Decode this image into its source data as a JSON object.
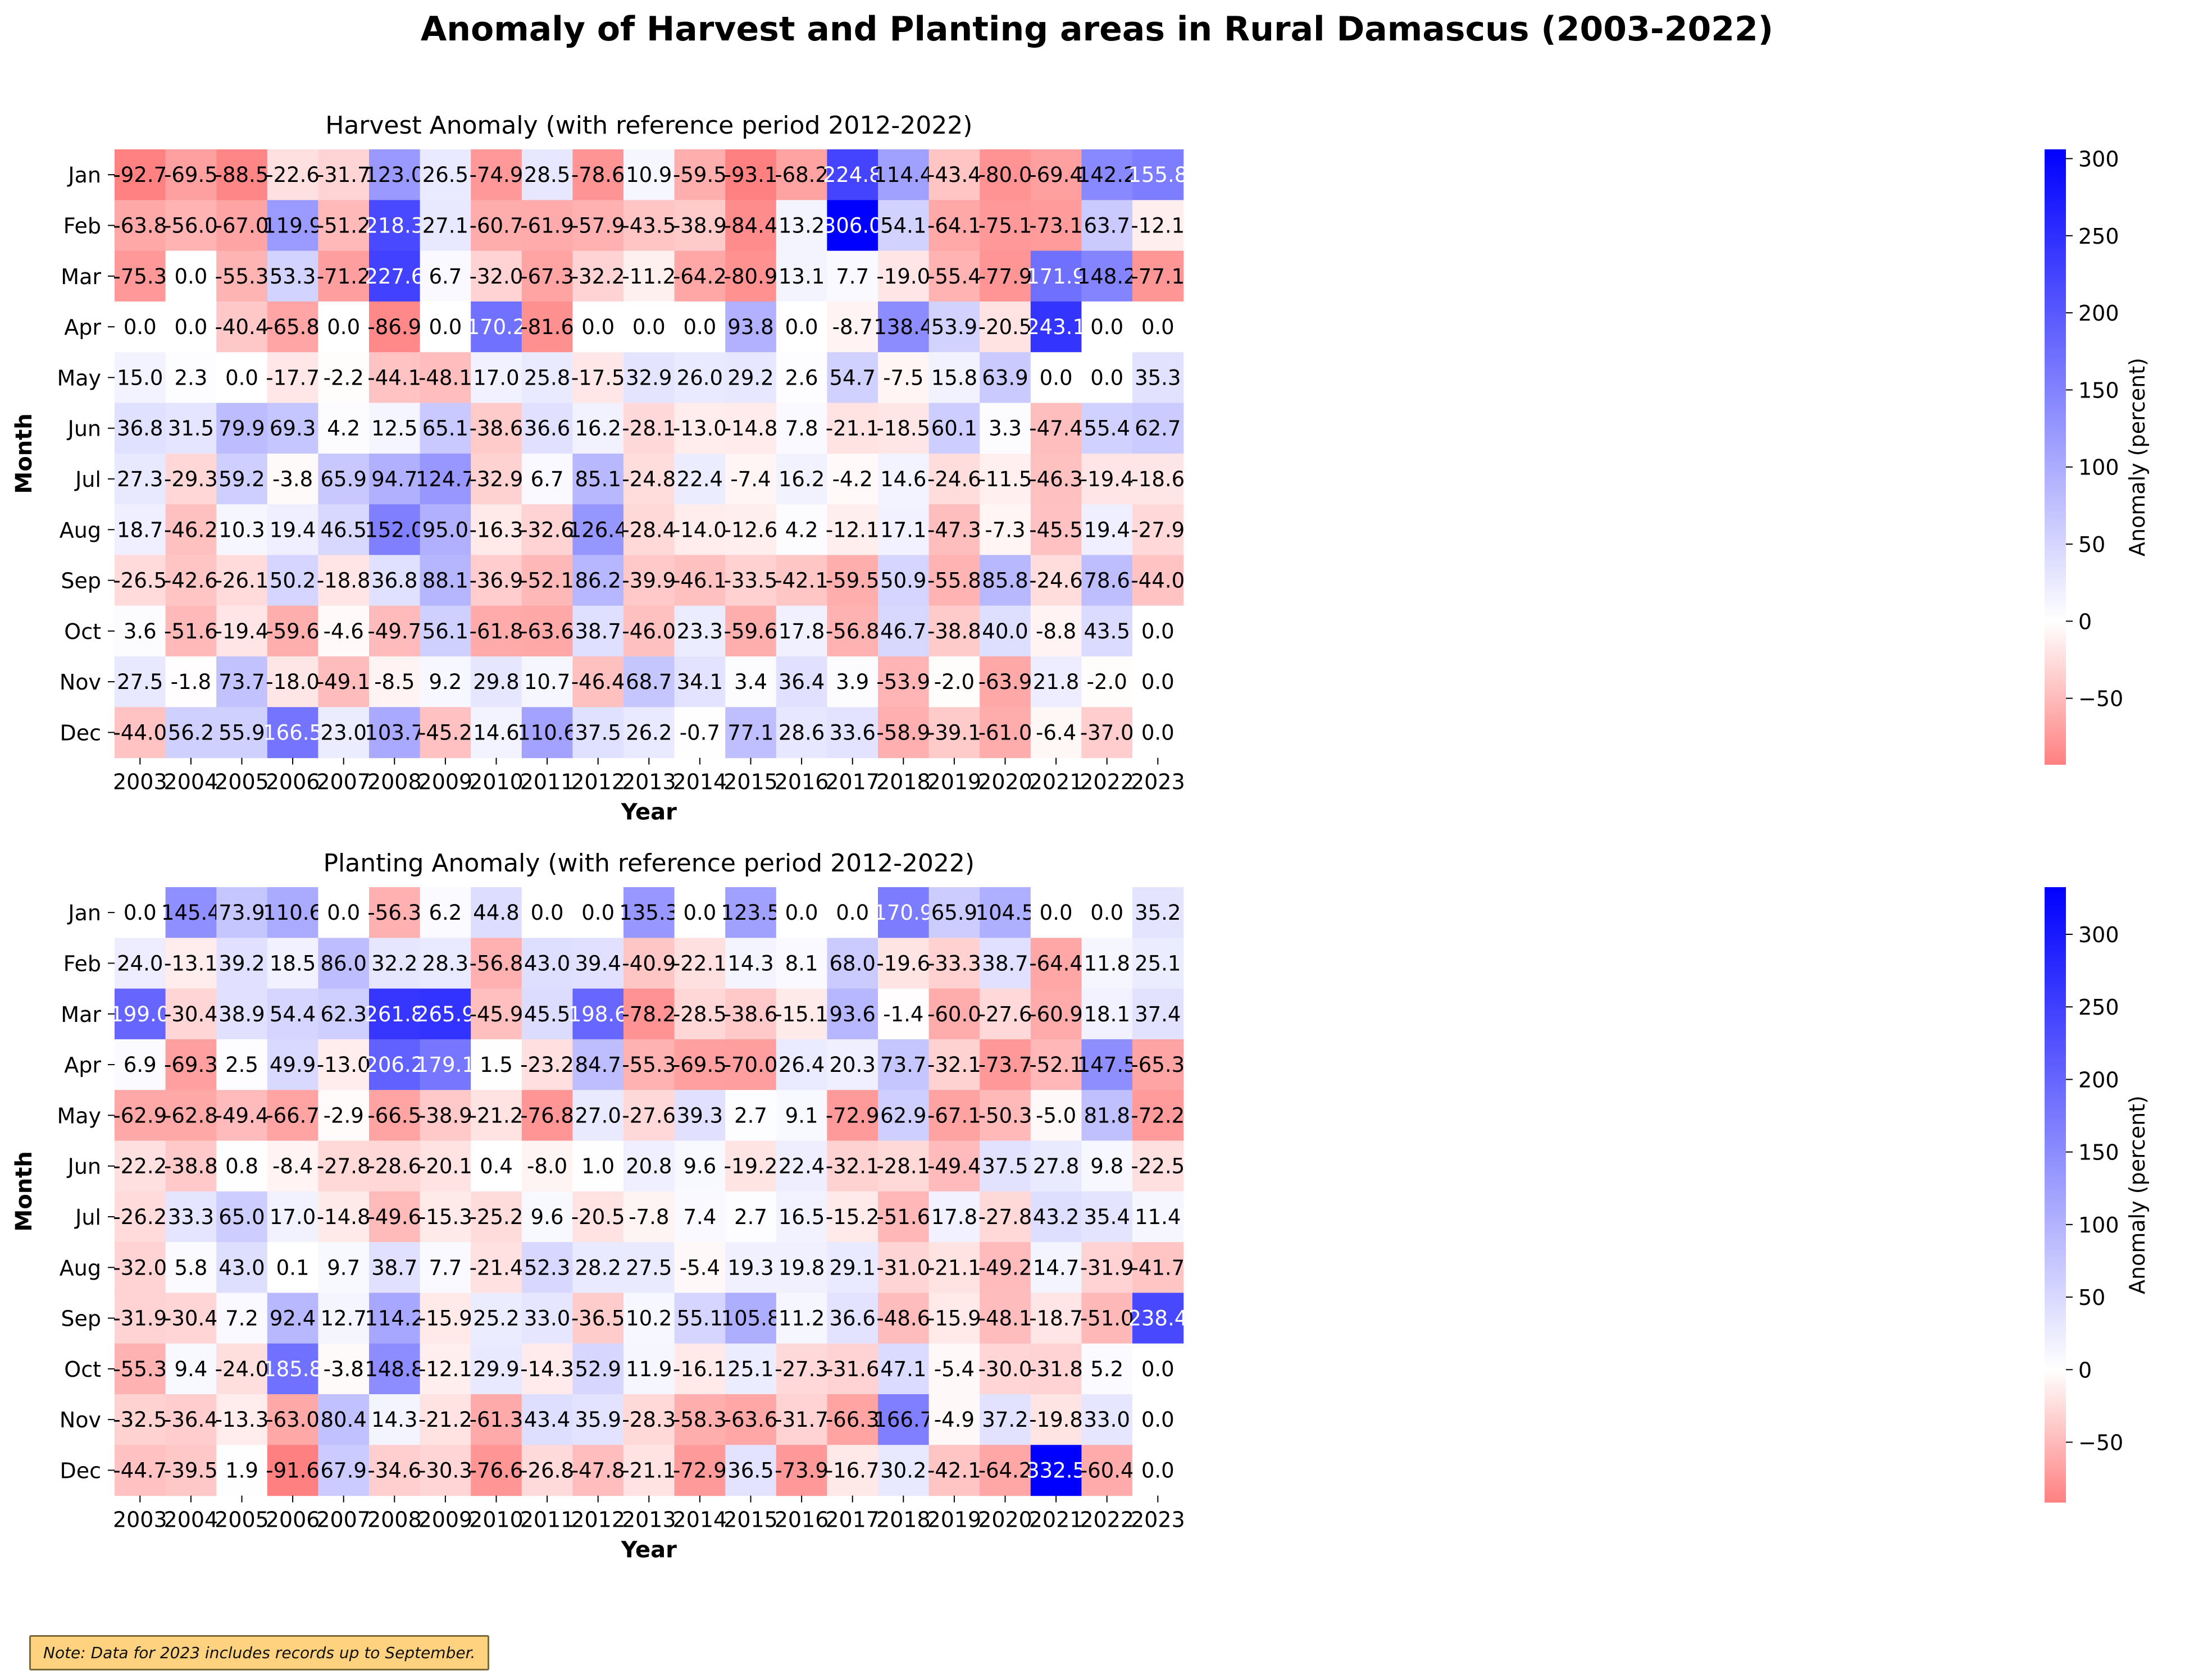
{
  "title": "Anomaly of Harvest and Planting areas in Rural Damascus (2003-2022)",
  "note": "Note: Data for 2023 includes records up to September.",
  "colors": {
    "negative": "#ff8080",
    "zero": "#ffffff",
    "positive": "#0000ff",
    "text_dark": "#000000",
    "text_light": "#ffffff"
  },
  "chart_data": [
    {
      "type": "heatmap",
      "title": "Harvest Anomaly (with reference period 2012-2022)",
      "xlabel": "Year",
      "ylabel": "Month",
      "colorbar_label": "Anomaly (percent)",
      "colorbar_ticks": [
        -50,
        0,
        50,
        100,
        150,
        200,
        250,
        300
      ],
      "vmin": -93.1,
      "vmax": 306.0,
      "x": [
        "2003",
        "2004",
        "2005",
        "2006",
        "2007",
        "2008",
        "2009",
        "2010",
        "2011",
        "2012",
        "2013",
        "2014",
        "2015",
        "2016",
        "2017",
        "2018",
        "2019",
        "2020",
        "2021",
        "2022",
        "2023"
      ],
      "y": [
        "Jan",
        "Feb",
        "Mar",
        "Apr",
        "May",
        "Jun",
        "Jul",
        "Aug",
        "Sep",
        "Oct",
        "Nov",
        "Dec"
      ],
      "values": [
        [
          -92.7,
          -69.5,
          -88.5,
          -22.6,
          -31.7,
          123.0,
          26.5,
          -74.9,
          28.5,
          -78.6,
          10.9,
          -59.5,
          -93.1,
          -68.2,
          224.8,
          114.4,
          -43.4,
          -80.0,
          -69.4,
          142.2,
          155.8
        ],
        [
          -63.8,
          -56.0,
          -67.0,
          119.9,
          -51.2,
          218.3,
          27.1,
          -60.7,
          -61.9,
          -57.9,
          -43.5,
          -38.9,
          -84.4,
          13.2,
          306.0,
          54.1,
          -64.1,
          -75.1,
          -73.1,
          63.7,
          -12.1
        ],
        [
          -75.3,
          0.0,
          -55.3,
          53.3,
          -71.2,
          227.6,
          6.7,
          -32.0,
          -67.3,
          -32.2,
          -11.2,
          -64.2,
          -80.9,
          13.1,
          7.7,
          -19.0,
          -55.4,
          -77.9,
          171.9,
          148.2,
          -77.1
        ],
        [
          0.0,
          0.0,
          -40.4,
          -65.8,
          0.0,
          -86.9,
          0.0,
          170.2,
          -81.6,
          0.0,
          0.0,
          0.0,
          93.8,
          0.0,
          -8.7,
          138.4,
          53.9,
          -20.5,
          243.1,
          0.0,
          0.0
        ],
        [
          15.0,
          2.3,
          0.0,
          -17.7,
          -2.2,
          -44.1,
          -48.1,
          17.0,
          25.8,
          -17.5,
          32.9,
          26.0,
          29.2,
          2.6,
          54.7,
          -7.5,
          15.8,
          63.9,
          0.0,
          0.0,
          35.3
        ],
        [
          36.8,
          31.5,
          79.9,
          69.3,
          4.2,
          12.5,
          65.1,
          -38.6,
          36.6,
          16.2,
          -28.1,
          -13.0,
          -14.8,
          7.8,
          -21.1,
          -18.5,
          60.1,
          3.3,
          -47.4,
          55.4,
          62.7
        ],
        [
          27.3,
          -29.3,
          59.2,
          -3.8,
          65.9,
          94.7,
          124.7,
          -32.9,
          6.7,
          85.1,
          -24.8,
          22.4,
          -7.4,
          16.2,
          -4.2,
          14.6,
          -24.6,
          -11.5,
          -46.3,
          -19.4,
          -18.6
        ],
        [
          18.7,
          -46.2,
          10.3,
          19.4,
          46.5,
          152.0,
          95.0,
          -16.3,
          -32.6,
          126.4,
          -28.4,
          -14.0,
          -12.6,
          4.2,
          -12.1,
          17.1,
          -47.3,
          -7.3,
          -45.5,
          19.4,
          -27.9
        ],
        [
          -26.5,
          -42.6,
          -26.1,
          50.2,
          -18.8,
          36.8,
          88.1,
          -36.9,
          -52.1,
          86.2,
          -39.9,
          -46.1,
          -33.5,
          -42.1,
          -59.5,
          50.9,
          -55.8,
          85.8,
          -24.6,
          78.6,
          -44.0
        ],
        [
          3.6,
          -51.6,
          -19.4,
          -59.6,
          -4.6,
          -49.7,
          56.1,
          -61.8,
          -63.6,
          38.7,
          -46.0,
          23.3,
          -59.6,
          17.8,
          -56.8,
          46.7,
          -38.8,
          40.0,
          -8.8,
          43.5,
          0.0
        ],
        [
          27.5,
          -1.8,
          73.7,
          -18.0,
          -49.1,
          -8.5,
          9.2,
          29.8,
          10.7,
          -46.4,
          68.7,
          34.1,
          3.4,
          36.4,
          3.9,
          -53.9,
          -2.0,
          -63.9,
          21.8,
          -2.0,
          0.0
        ],
        [
          -44.0,
          56.2,
          55.9,
          166.5,
          23.0,
          103.7,
          -45.2,
          14.6,
          110.6,
          37.5,
          26.2,
          -0.7,
          77.1,
          28.6,
          33.6,
          -58.9,
          -39.1,
          -61.0,
          -6.4,
          -37.0,
          0.0
        ]
      ]
    },
    {
      "type": "heatmap",
      "title": "Planting Anomaly (with reference period 2012-2022)",
      "xlabel": "Year",
      "ylabel": "Month",
      "colorbar_label": "Anomaly (percent)",
      "colorbar_ticks": [
        -50,
        0,
        50,
        100,
        150,
        200,
        250,
        300
      ],
      "vmin": -91.6,
      "vmax": 332.5,
      "x": [
        "2003",
        "2004",
        "2005",
        "2006",
        "2007",
        "2008",
        "2009",
        "2010",
        "2011",
        "2012",
        "2013",
        "2014",
        "2015",
        "2016",
        "2017",
        "2018",
        "2019",
        "2020",
        "2021",
        "2022",
        "2023"
      ],
      "y": [
        "Jan",
        "Feb",
        "Mar",
        "Apr",
        "May",
        "Jun",
        "Jul",
        "Aug",
        "Sep",
        "Oct",
        "Nov",
        "Dec"
      ],
      "values": [
        [
          0.0,
          145.4,
          73.9,
          110.6,
          0.0,
          -56.3,
          6.2,
          44.8,
          0.0,
          0.0,
          135.3,
          0.0,
          123.5,
          0.0,
          0.0,
          170.9,
          65.9,
          104.5,
          0.0,
          0.0,
          35.2
        ],
        [
          24.0,
          -13.1,
          39.2,
          18.5,
          86.0,
          32.2,
          28.3,
          -56.8,
          43.0,
          39.4,
          -40.9,
          -22.1,
          14.3,
          8.1,
          68.0,
          -19.6,
          -33.3,
          38.7,
          -64.4,
          11.8,
          25.1
        ],
        [
          199.0,
          -30.4,
          38.9,
          54.4,
          62.3,
          261.8,
          265.9,
          -45.9,
          45.5,
          198.6,
          -78.2,
          -28.5,
          -38.6,
          -15.1,
          93.6,
          -1.4,
          -60.0,
          -27.6,
          -60.9,
          18.1,
          37.4
        ],
        [
          6.9,
          -69.3,
          2.5,
          49.9,
          -13.0,
          206.2,
          179.1,
          1.5,
          -23.2,
          84.7,
          -55.3,
          -69.5,
          -70.0,
          26.4,
          20.3,
          73.7,
          -32.1,
          -73.7,
          -52.1,
          147.5,
          -65.3
        ],
        [
          -62.9,
          -62.8,
          -49.4,
          -66.7,
          -2.9,
          -66.5,
          -38.9,
          -21.2,
          -76.8,
          27.0,
          -27.6,
          39.3,
          2.7,
          9.1,
          -72.9,
          62.9,
          -67.1,
          -50.3,
          -5.0,
          81.8,
          -72.2
        ],
        [
          -22.2,
          -38.8,
          0.8,
          -8.4,
          -27.8,
          -28.6,
          -20.1,
          0.4,
          -8.0,
          1.0,
          20.8,
          9.6,
          -19.2,
          22.4,
          -32.1,
          -28.1,
          -49.4,
          37.5,
          27.8,
          9.8,
          -22.5
        ],
        [
          -26.2,
          33.3,
          65.0,
          17.0,
          -14.8,
          -49.6,
          -15.3,
          -25.2,
          9.6,
          -20.5,
          -7.8,
          7.4,
          2.7,
          16.5,
          -15.2,
          -51.6,
          17.8,
          -27.8,
          43.2,
          35.4,
          11.4
        ],
        [
          -32.0,
          5.8,
          43.0,
          0.1,
          9.7,
          38.7,
          7.7,
          -21.4,
          52.3,
          28.2,
          27.5,
          -5.4,
          19.3,
          19.8,
          29.1,
          -31.0,
          -21.1,
          -49.2,
          14.7,
          -31.9,
          -41.7
        ],
        [
          -31.9,
          -30.4,
          7.2,
          92.4,
          12.7,
          114.2,
          -15.9,
          25.2,
          33.0,
          -36.5,
          10.2,
          55.1,
          105.8,
          11.2,
          36.6,
          -48.6,
          -15.9,
          -48.1,
          -18.7,
          -51.0,
          238.4
        ],
        [
          -55.3,
          9.4,
          -24.0,
          185.8,
          -3.8,
          148.8,
          -12.1,
          29.9,
          -14.3,
          52.9,
          11.9,
          -16.1,
          25.1,
          -27.3,
          -31.6,
          47.1,
          -5.4,
          -30.0,
          -31.8,
          5.2,
          0.0
        ],
        [
          -32.5,
          -36.4,
          -13.3,
          -63.0,
          80.4,
          14.3,
          -21.2,
          -61.3,
          43.4,
          35.9,
          -28.3,
          -58.3,
          -63.6,
          -31.7,
          -66.3,
          166.7,
          -4.9,
          37.2,
          -19.8,
          33.0,
          0.0
        ],
        [
          -44.7,
          -39.5,
          1.9,
          -91.6,
          67.9,
          -34.6,
          -30.3,
          -76.6,
          -26.8,
          -47.8,
          -21.1,
          -72.9,
          36.5,
          -73.9,
          -16.7,
          30.2,
          -42.1,
          -64.2,
          332.5,
          -60.4,
          0.0
        ]
      ]
    }
  ]
}
